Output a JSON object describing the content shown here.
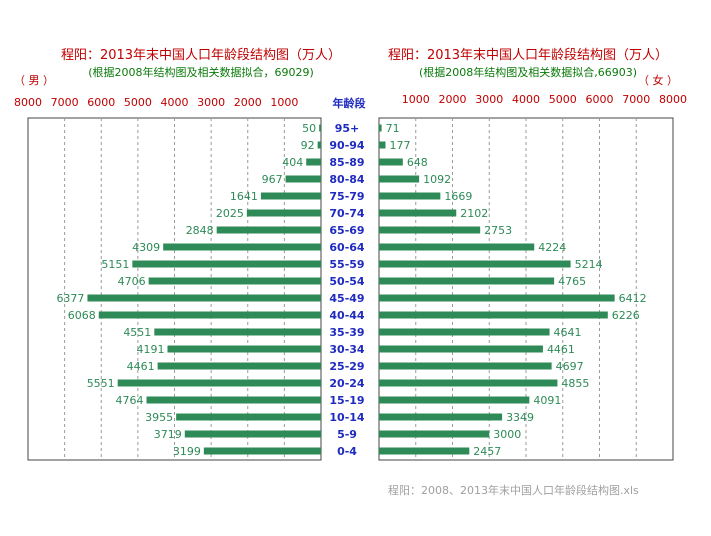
{
  "source_file": "程阳：2008、2013年末中国人口年龄段结构图.xls",
  "colors": {
    "bar": "#2e8b57",
    "title": "#c00000",
    "subtitle": "#0a7a0a",
    "age": "#1f2bbf",
    "value_label": "#2e8b57",
    "grid": "#9a9a9a"
  },
  "chart_data": {
    "type": "bar",
    "orientation": "horizontal",
    "layout": "population-pyramid",
    "categories": [
      "95+",
      "90-94",
      "85-89",
      "80-84",
      "75-79",
      "70-74",
      "65-69",
      "60-64",
      "55-59",
      "50-54",
      "45-49",
      "40-44",
      "35-39",
      "30-34",
      "25-29",
      "20-24",
      "15-19",
      "10-14",
      "5-9",
      "0-4"
    ],
    "category_header": "年龄段",
    "xlim": [
      0,
      8000
    ],
    "ticks": [
      "1000",
      "2000",
      "3000",
      "4000",
      "5000",
      "6000",
      "7000",
      "8000"
    ],
    "grid": "vertical dashed",
    "panels": [
      {
        "side": "left",
        "title": "程阳：2013年末中国人口年龄段结构图（万人）",
        "subtitle": "(根据2008年结构图及相关数据拟合，69029)",
        "sex_label": "（ 男 ）",
        "values": [
          50,
          92,
          404,
          967,
          1641,
          2025,
          2848,
          4309,
          5151,
          4706,
          6377,
          6068,
          4551,
          4191,
          4461,
          5551,
          4764,
          3955,
          3719,
          3199
        ]
      },
      {
        "side": "right",
        "title": "程阳：2013年末中国人口年龄段结构图（万人）",
        "subtitle": "(根据2008年结构图及相关数据拟合,66903)",
        "sex_label": "（ 女 ）",
        "values": [
          71,
          177,
          648,
          1092,
          1669,
          2102,
          2753,
          4224,
          5214,
          4765,
          6412,
          6226,
          4641,
          4461,
          4697,
          4855,
          4091,
          3349,
          3000,
          2457
        ]
      }
    ]
  }
}
